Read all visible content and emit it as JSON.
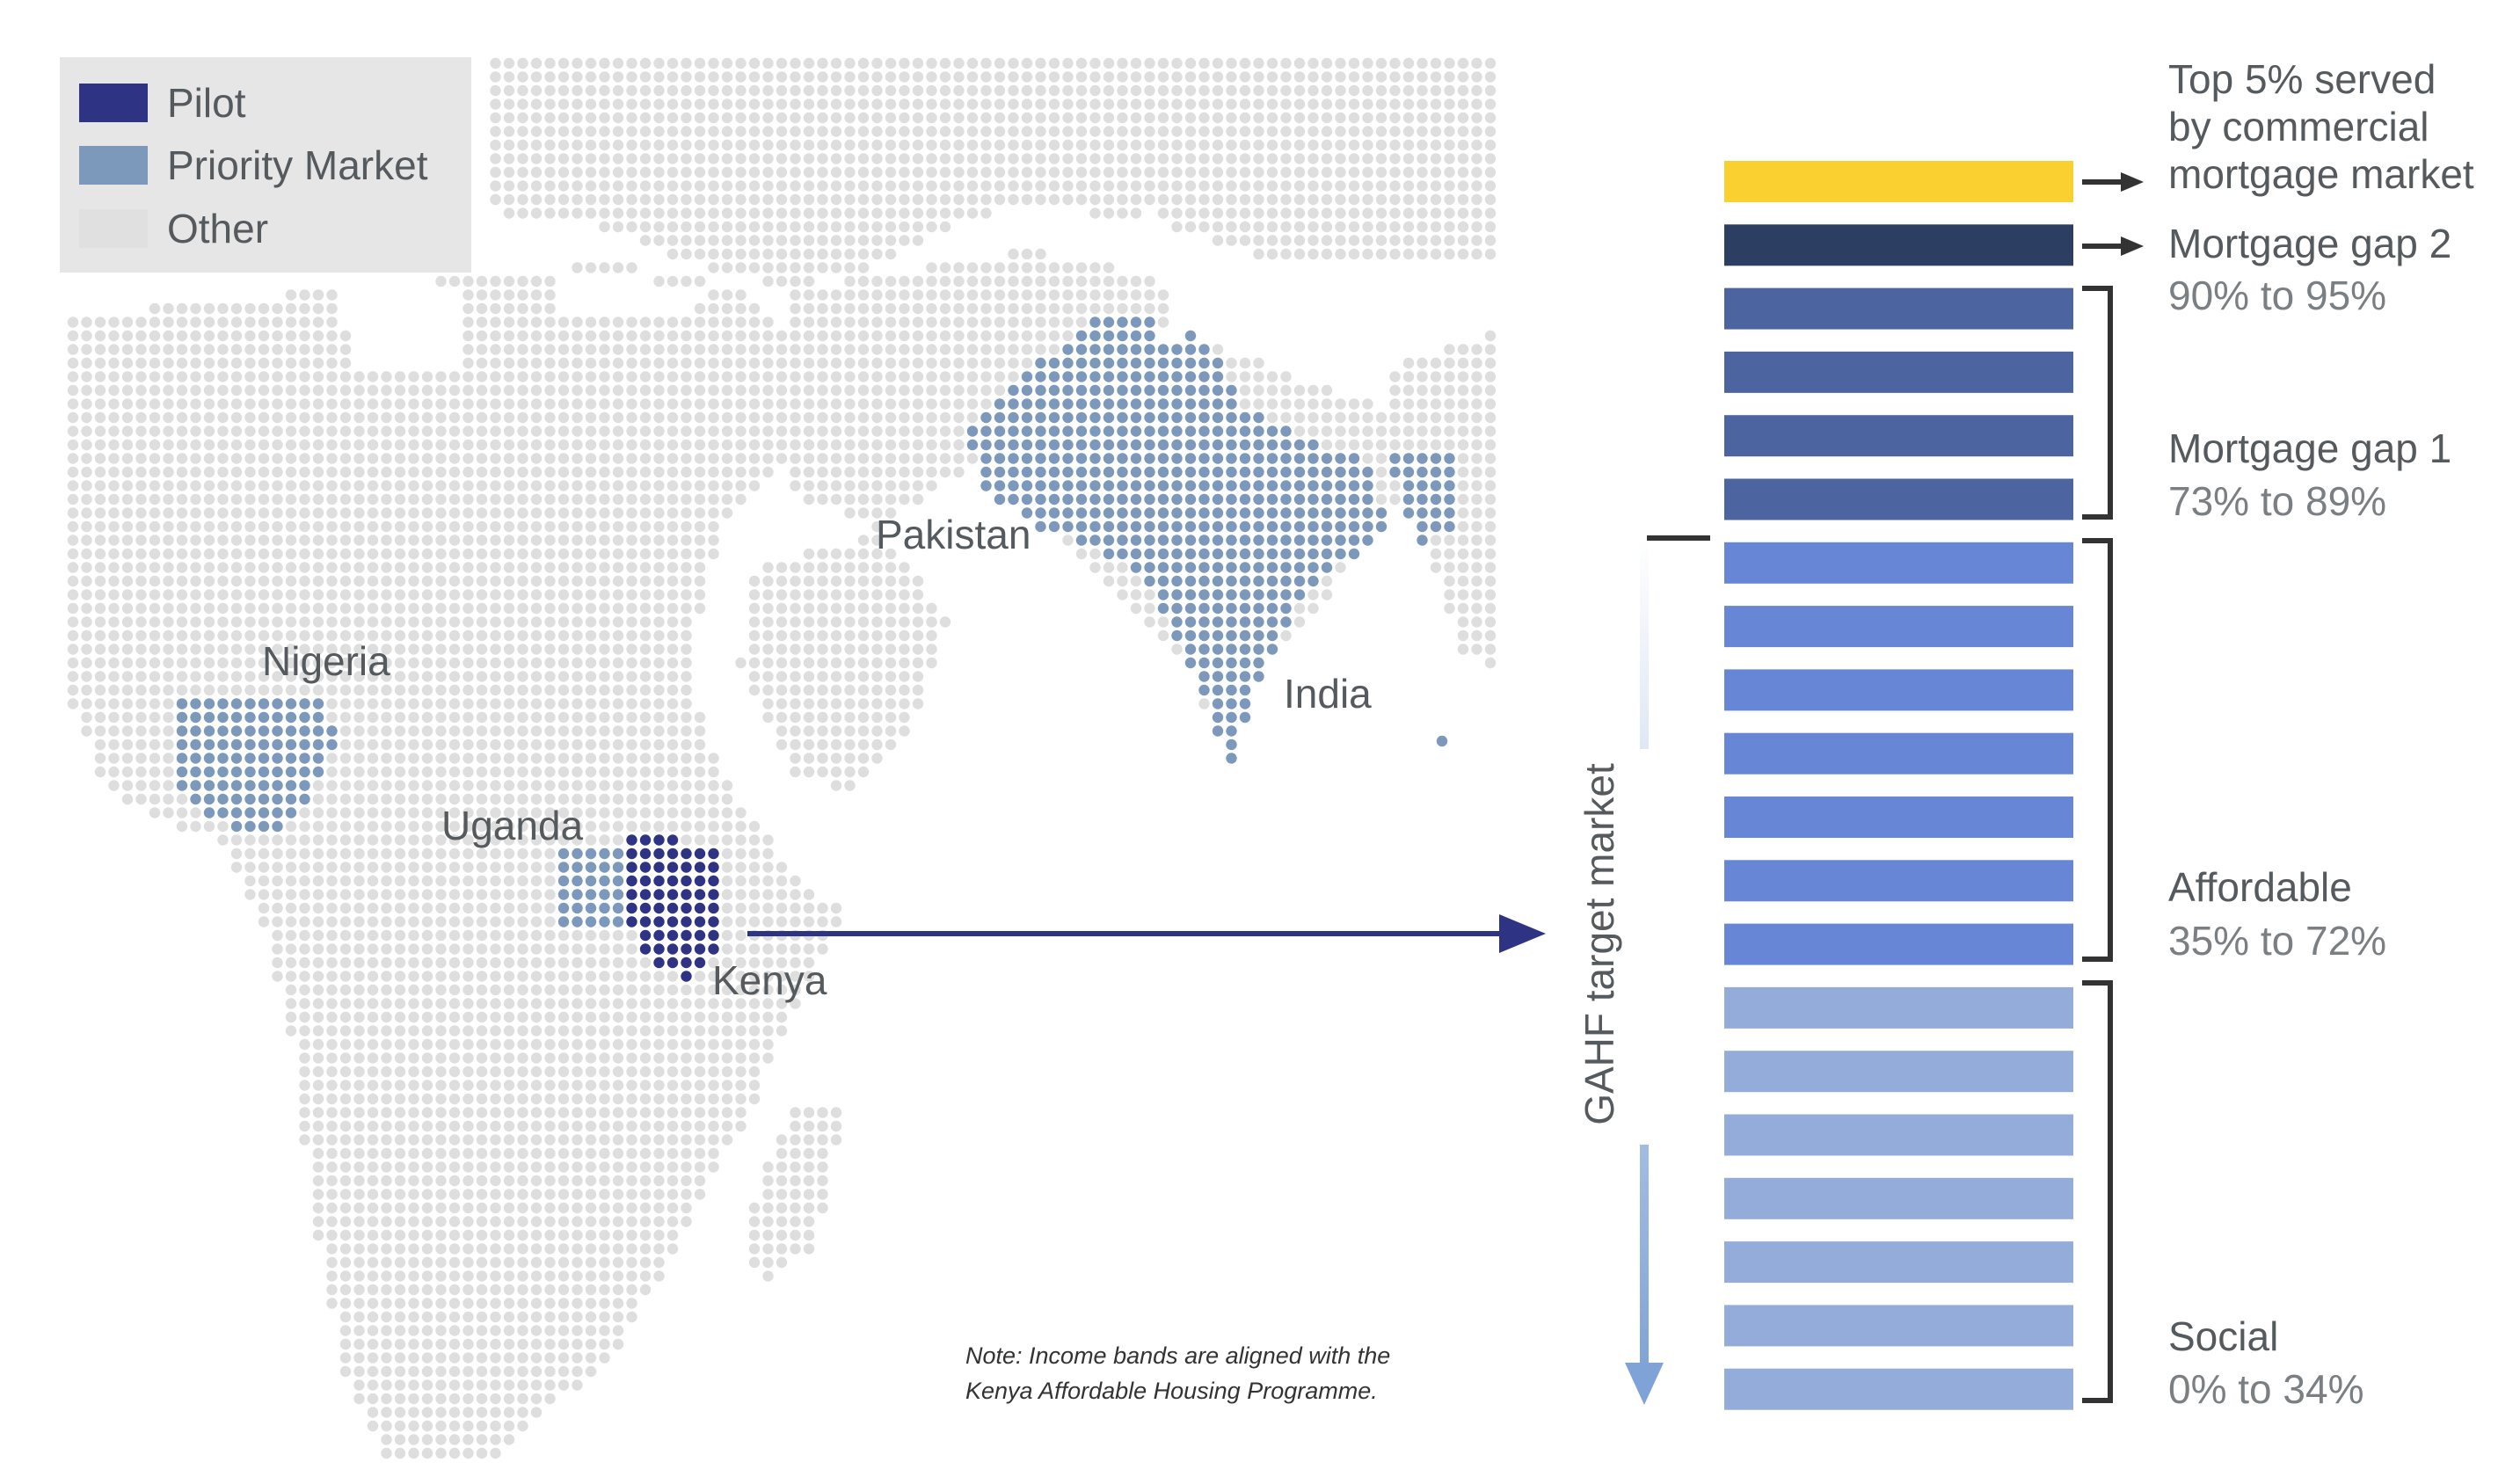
{
  "legend": {
    "items": [
      {
        "label": "Pilot",
        "color": "#2e3383"
      },
      {
        "label": "Priority Market",
        "color": "#7c98bb"
      },
      {
        "label": "Other",
        "color": "#e0e0e0"
      }
    ]
  },
  "map": {
    "labels": {
      "nigeria": "Nigeria",
      "uganda": "Uganda",
      "kenya": "Kenya",
      "pakistan": "Pakistan",
      "india": "India"
    },
    "colors": {
      "other": "#dedede",
      "priority": "#7c98bb",
      "pilot": "#2e3383"
    }
  },
  "side_label": "GAHF target market",
  "note": {
    "line1": "Note: Income bands are aligned with the",
    "line2": "Kenya Affordable Housing Programme."
  },
  "bands": {
    "colors": {
      "top": "#f9d030",
      "gap2": "#2c3e62",
      "gap1": "#4c65a1",
      "affordable": "#6886d6",
      "social": "#93acd9"
    },
    "counts": {
      "top": 1,
      "gap2": 1,
      "gap1": 4,
      "affordable": 7,
      "social": 7
    },
    "labels": {
      "top": [
        "Top 5% served",
        "by commercial",
        "mortgage market"
      ],
      "gap2": {
        "title": "Mortgage gap 2",
        "range": "90% to 95%"
      },
      "gap1": {
        "title": "Mortgage gap 1",
        "range": "73% to 89%"
      },
      "affordable": {
        "title": "Affordable",
        "range": "35% to 72%"
      },
      "social": {
        "title": "Social",
        "range": "0% to 34%"
      }
    }
  }
}
